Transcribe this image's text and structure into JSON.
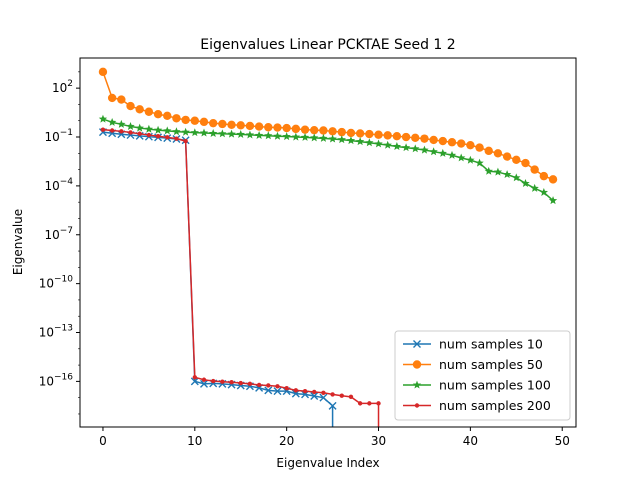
{
  "chart_data": {
    "type": "line",
    "title": "Eigenvalues Linear PCKTAE Seed 1 2",
    "xlabel": "Eigenvalue Index",
    "ylabel": "Eigenvalue",
    "yscale": "log",
    "xlim": [
      -2.5,
      51.5
    ],
    "ylim_log10": [
      -18.8,
      3.85
    ],
    "xticks": [
      0,
      10,
      20,
      30,
      40,
      50
    ],
    "xtick_labels": [
      "0",
      "10",
      "20",
      "30",
      "40",
      "50"
    ],
    "yticks_log10": [
      2,
      -1,
      -4,
      -7,
      -10,
      -13,
      -16
    ],
    "ytick_mantissas": [
      "2",
      "−1",
      "−4",
      "−7",
      "−10",
      "−13",
      "−16"
    ],
    "ytick_base": "10",
    "grid": false,
    "legend_position": "lower-right",
    "series": [
      {
        "name": "num samples 10",
        "color": "#1f77b4",
        "marker": "x",
        "x": [
          0,
          1,
          2,
          3,
          4,
          5,
          6,
          7,
          8,
          9,
          10,
          11,
          12,
          13,
          14,
          15,
          16,
          17,
          18,
          19,
          20,
          21,
          22,
          23,
          24,
          25,
          25
        ],
        "log10y": [
          -0.7,
          -0.77,
          -0.83,
          -0.88,
          -0.93,
          -0.98,
          -1.02,
          -1.07,
          -1.12,
          -1.2,
          -16.0,
          -16.15,
          -16.12,
          -16.15,
          -16.2,
          -16.25,
          -16.3,
          -16.4,
          -16.55,
          -16.6,
          -16.6,
          -16.75,
          -16.8,
          -16.9,
          -17.0,
          -17.5,
          -19.5
        ]
      },
      {
        "name": "num samples 50",
        "color": "#ff7f0e",
        "marker": "o",
        "x": [
          0,
          1,
          2,
          3,
          4,
          5,
          6,
          7,
          8,
          9,
          10,
          11,
          12,
          13,
          14,
          15,
          16,
          17,
          18,
          19,
          20,
          21,
          22,
          23,
          24,
          25,
          26,
          27,
          28,
          29,
          30,
          31,
          32,
          33,
          34,
          35,
          36,
          37,
          38,
          39,
          40,
          41,
          42,
          43,
          44,
          45,
          46,
          47,
          48,
          49
        ],
        "log10y": [
          3.0,
          1.4,
          1.3,
          0.9,
          0.7,
          0.55,
          0.4,
          0.3,
          0.15,
          0.05,
          0.0,
          -0.07,
          -0.15,
          -0.2,
          -0.25,
          -0.28,
          -0.32,
          -0.36,
          -0.4,
          -0.42,
          -0.45,
          -0.5,
          -0.55,
          -0.58,
          -0.6,
          -0.65,
          -0.7,
          -0.75,
          -0.78,
          -0.82,
          -0.86,
          -0.9,
          -0.95,
          -1.0,
          -1.05,
          -1.1,
          -1.18,
          -1.25,
          -1.32,
          -1.4,
          -1.5,
          -1.65,
          -1.85,
          -2.0,
          -2.2,
          -2.4,
          -2.6,
          -3.0,
          -3.4,
          -3.6
        ]
      },
      {
        "name": "num samples 100",
        "color": "#2ca02c",
        "marker": "star",
        "x": [
          0,
          1,
          2,
          3,
          4,
          5,
          6,
          7,
          8,
          9,
          10,
          11,
          12,
          13,
          14,
          15,
          16,
          17,
          18,
          19,
          20,
          21,
          22,
          23,
          24,
          25,
          26,
          27,
          28,
          29,
          30,
          31,
          32,
          33,
          34,
          35,
          36,
          37,
          38,
          39,
          40,
          41,
          42,
          43,
          44,
          45,
          46,
          47,
          48,
          49
        ],
        "log10y": [
          0.1,
          -0.1,
          -0.22,
          -0.35,
          -0.45,
          -0.52,
          -0.58,
          -0.62,
          -0.67,
          -0.7,
          -0.73,
          -0.75,
          -0.78,
          -0.8,
          -0.82,
          -0.84,
          -0.87,
          -0.9,
          -0.92,
          -0.95,
          -0.97,
          -1.0,
          -1.02,
          -1.05,
          -1.08,
          -1.12,
          -1.16,
          -1.22,
          -1.28,
          -1.35,
          -1.42,
          -1.5,
          -1.58,
          -1.65,
          -1.72,
          -1.8,
          -1.9,
          -2.0,
          -2.12,
          -2.28,
          -2.42,
          -2.6,
          -3.1,
          -3.15,
          -3.3,
          -3.5,
          -3.85,
          -4.15,
          -4.4,
          -4.9
        ]
      },
      {
        "name": "num samples 200",
        "color": "#d62728",
        "marker": "dot",
        "x": [
          0,
          1,
          2,
          3,
          4,
          5,
          6,
          7,
          8,
          9,
          10,
          11,
          12,
          13,
          14,
          15,
          16,
          17,
          18,
          19,
          20,
          21,
          22,
          23,
          24,
          25,
          26,
          27,
          28,
          29,
          30,
          30
        ],
        "log10y": [
          -0.55,
          -0.6,
          -0.65,
          -0.72,
          -0.8,
          -0.88,
          -0.95,
          -1.02,
          -1.1,
          -1.25,
          -15.75,
          -15.9,
          -15.98,
          -16.02,
          -16.05,
          -16.1,
          -16.15,
          -16.22,
          -16.25,
          -16.3,
          -16.42,
          -16.55,
          -16.6,
          -16.65,
          -16.7,
          -16.8,
          -16.88,
          -16.95,
          -17.35,
          -17.35,
          -17.35,
          -19.5
        ]
      }
    ]
  }
}
